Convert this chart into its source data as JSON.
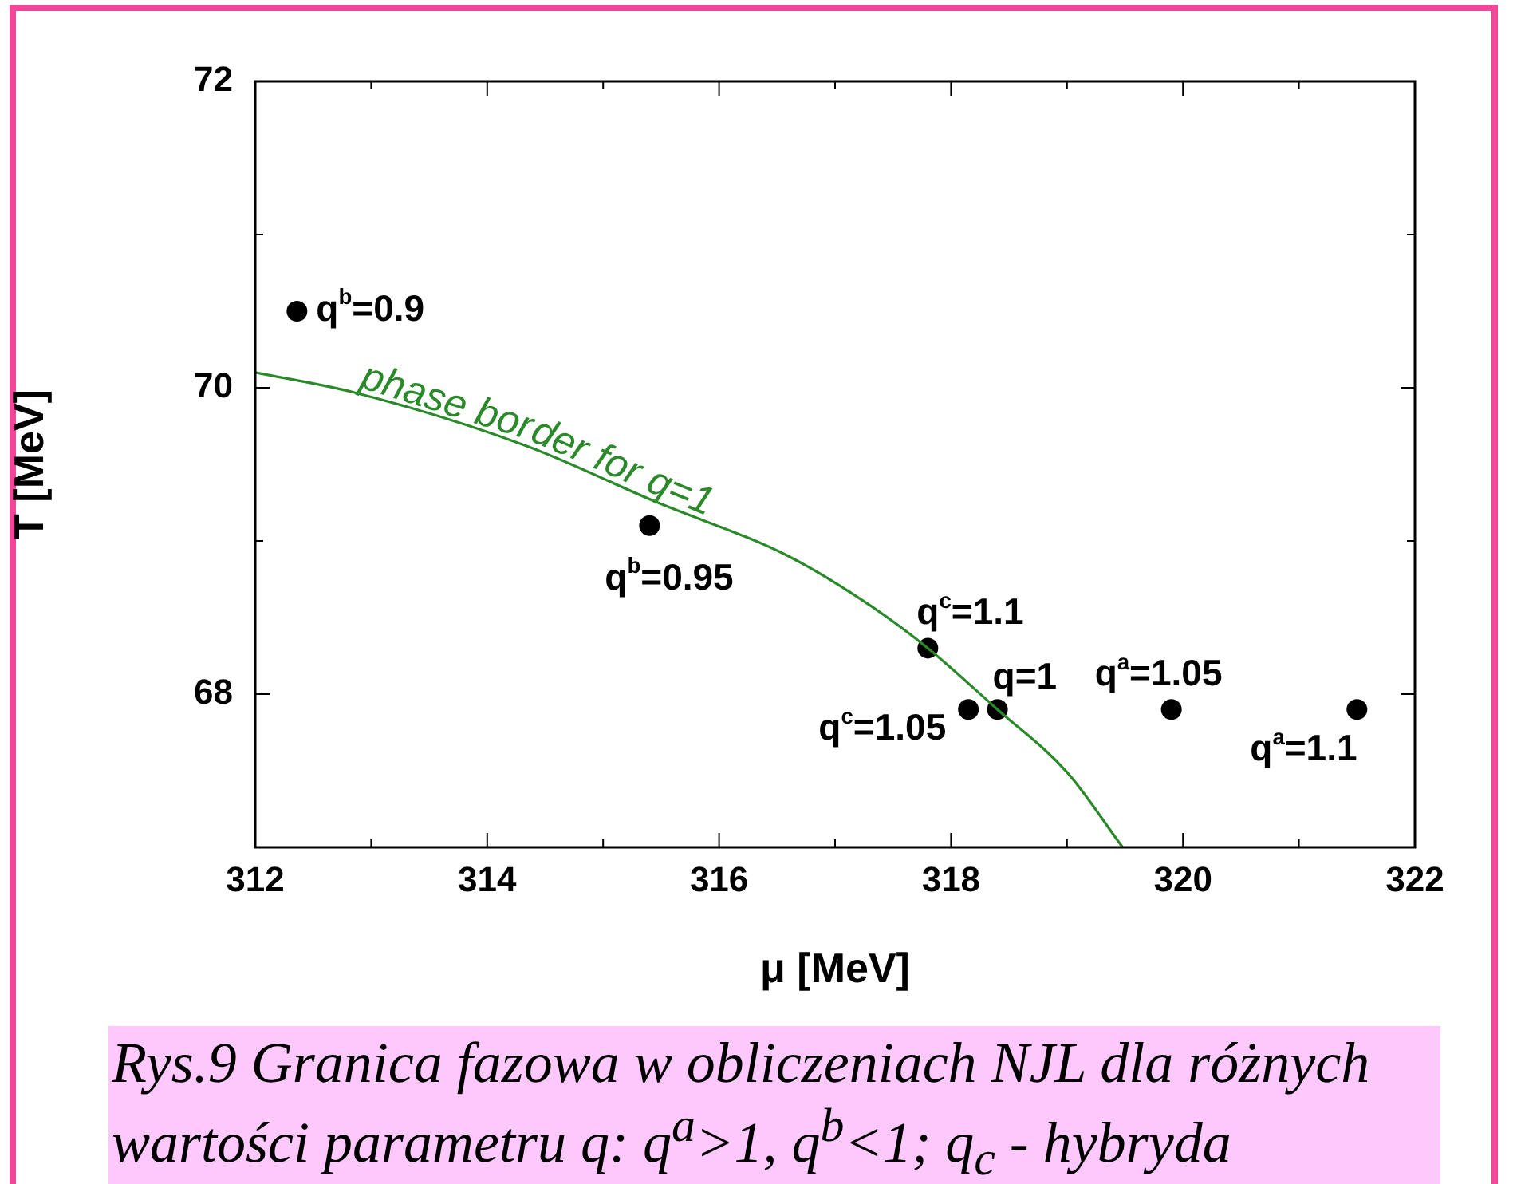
{
  "chart_data": {
    "type": "scatter",
    "xlabel": "μ [MeV]",
    "ylabel": "T [MeV]",
    "xlim": [
      312,
      322
    ],
    "xticks": [
      312,
      {
        "value": 313,
        "label": null
      },
      314,
      {
        "value": 315,
        "label": null
      },
      316,
      {
        "value": 317,
        "label": null
      },
      318,
      {
        "value": 319,
        "label": null
      },
      320,
      {
        "value": 321,
        "label": null
      },
      322
    ],
    "ylim": [
      67,
      72
    ],
    "yticks": [
      {
        "value": 67,
        "label": null
      },
      68,
      {
        "value": 69,
        "label": null
      },
      70,
      {
        "value": 71,
        "label": null
      },
      72
    ],
    "grid": false,
    "legend": false,
    "series": [
      {
        "type": "line",
        "name": "phase border for q=1",
        "color": "#2a8a2a",
        "marker": "none",
        "line_style": "solid",
        "x": [
          312,
          312.85,
          314.34,
          315.44,
          316.6,
          317.3,
          317.8,
          318.4,
          319.0,
          319.48
        ],
        "values": [
          70.1,
          69.97,
          69.62,
          69.26,
          68.9,
          68.58,
          68.3,
          67.9,
          67.49,
          67.0
        ]
      },
      {
        "color": "#000000",
        "marker": "circle",
        "x": [
          312.36,
          315.4,
          317.8,
          318.15,
          318.4,
          319.9,
          321.5
        ],
        "values": [
          70.5,
          69.1,
          68.3,
          67.9,
          67.9,
          67.9,
          67.9
        ]
      }
    ],
    "annotations": [
      {
        "text": "q$^{b}$=0.9",
        "x": 312.36,
        "y": 70.5
      },
      {
        "text": "q$^{b}$=0.95",
        "x": 315.4,
        "y": 69.1
      },
      {
        "text": "q$^{c}$=1.1",
        "x": 317.8,
        "y": 68.3
      },
      {
        "text": "q$^{c}$=1.05",
        "x": 318.15,
        "y": 67.9
      },
      {
        "text": "q=1",
        "x": 318.4,
        "y": 67.9
      },
      {
        "text": "q$^{a}$=1.05",
        "x": 319.9,
        "y": 67.9
      },
      {
        "text": "q$^{a}$=1.1",
        "x": 321.5,
        "y": 67.9
      },
      "Rys.9 Granica fazowa w obliczeniach NJL dla różnych wartości parametru q: q$^{a}$>1, q$^{b}$<1; q$_{c}$ - hybryda"
    ]
  }
}
